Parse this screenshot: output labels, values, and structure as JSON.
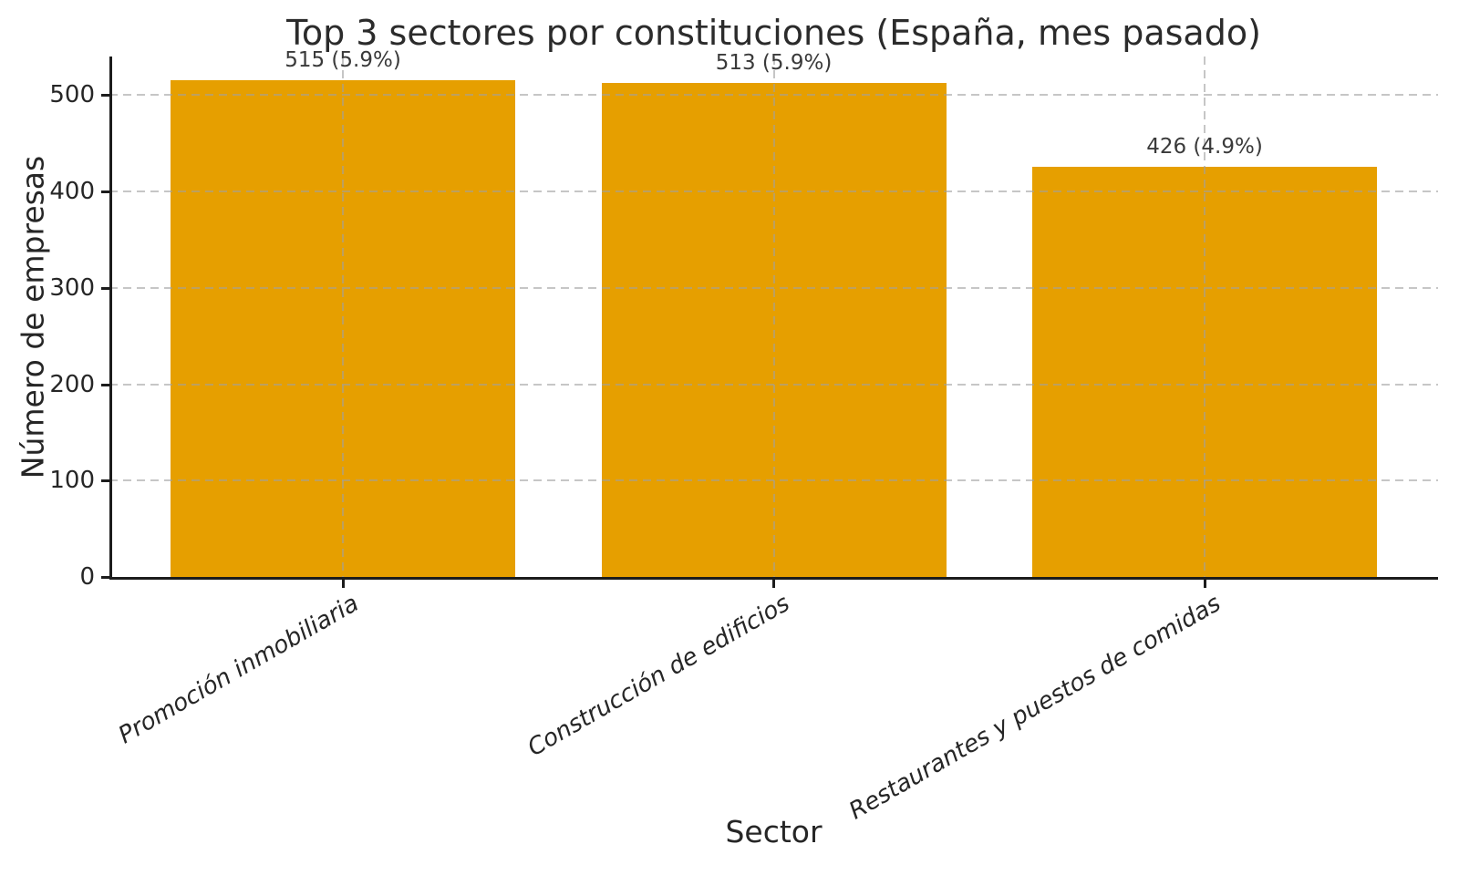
{
  "chart_data": {
    "type": "bar",
    "title": "Top 3 sectores por constituciones (España, mes pasado)",
    "xlabel": "Sector",
    "ylabel": "Número de empresas",
    "categories": [
      "Promoción inmobiliaria",
      "Construcción de edificios",
      "Restaurantes y puestos de comidas"
    ],
    "values": [
      515,
      513,
      426
    ],
    "bar_labels": [
      "515 (5.9%)",
      "513 (5.9%)",
      "426 (4.9%)"
    ],
    "yticks": [
      0,
      100,
      200,
      300,
      400,
      500
    ],
    "ylim": [
      0,
      540
    ],
    "bar_color": "#E69F00",
    "grid": "dashed-both-axes",
    "legend": "none",
    "xtick_style": "italic-rotated-30deg"
  }
}
